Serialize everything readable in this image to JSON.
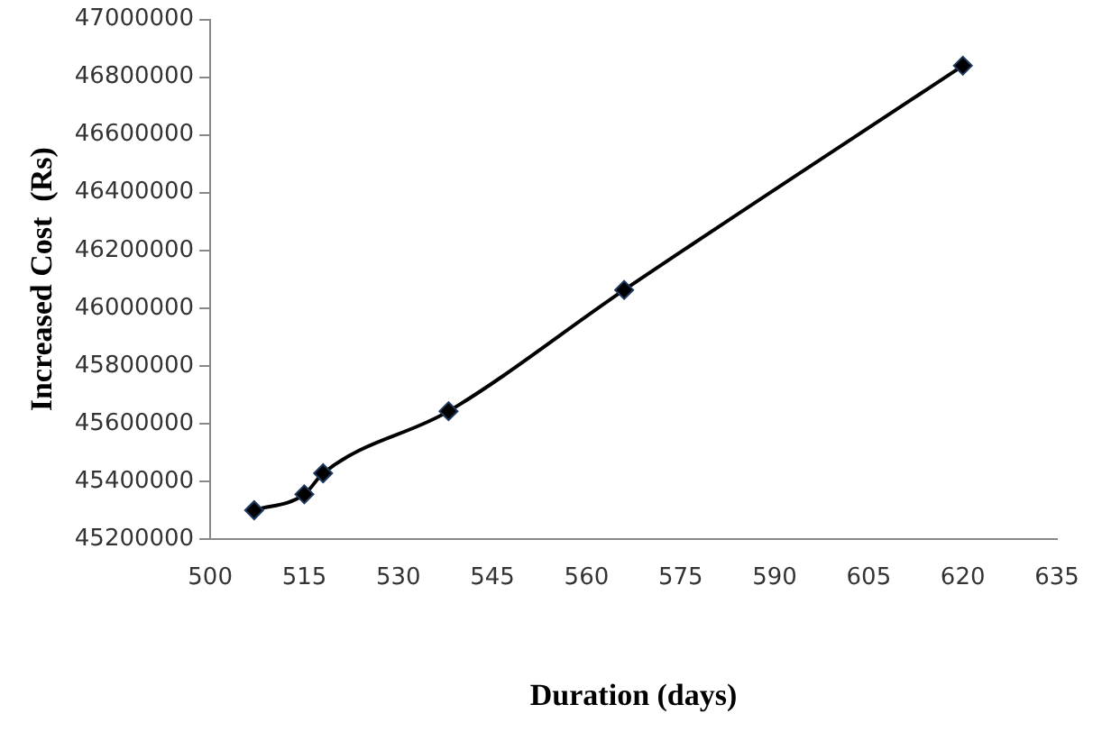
{
  "chart_data": {
    "type": "line",
    "xlabel": "Duration (days)",
    "ylabel": "Increased Cost  (Rs)",
    "x": [
      507,
      515,
      518,
      538,
      566,
      620
    ],
    "series": [
      {
        "color": "#000000",
        "values": [
          45300000,
          45355000,
          45428000,
          45643000,
          46063000,
          46840000
        ]
      }
    ],
    "xlim": [
      500,
      635
    ],
    "xticks": [
      500,
      515,
      530,
      545,
      560,
      575,
      590,
      605,
      620,
      635
    ],
    "ylim": [
      45200000,
      47000000
    ],
    "yticks": [
      45200000,
      45400000,
      45600000,
      45800000,
      46000000,
      46200000,
      46400000,
      46600000,
      46800000,
      47000000
    ],
    "marker": "diamond",
    "line_style": "solid",
    "grid": false,
    "legend": false
  }
}
